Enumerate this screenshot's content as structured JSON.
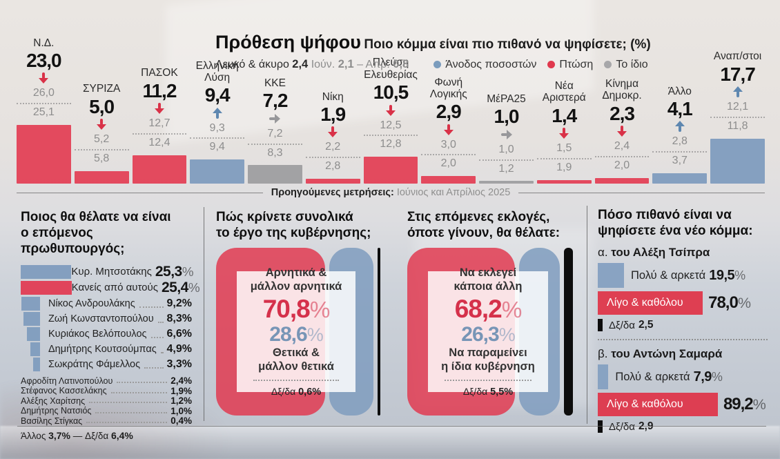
{
  "palette": {
    "red": "#e0394e",
    "blue": "#7f9cbe",
    "gray": "#a7a7a9",
    "black": "#111111"
  },
  "chart_data": [
    {
      "type": "bar",
      "title": "Πρόθεση ψήφου",
      "subtitle": "Ποιο κόμμα είναι πιο πιθανό να ψηφίσετε; (%)",
      "note": {
        "label": "Λευκό & άκυρο",
        "value": "2,4",
        "prev1_label": "Ιούν.",
        "prev1": "2,1",
        "dash": "–",
        "prev2_label": "Απρ.",
        "prev2": "0,8"
      },
      "legend": [
        {
          "label": "Άνοδος ποσοστών",
          "color": "#7b9cbd",
          "trend": "up"
        },
        {
          "label": "Πτώση",
          "color": "#e0394e",
          "trend": "down"
        },
        {
          "label": "Το ίδιο",
          "color": "#a7a7a9",
          "trend": "same"
        }
      ],
      "divider": {
        "bold": "Προηγούμενες μετρήσεις:",
        "rest": "Ιούνιος και Απρίλιος 2025"
      },
      "unit": "%",
      "parties": [
        {
          "name": "Ν.Δ.",
          "value": "23,0",
          "num": 23.0,
          "trend": "down",
          "prev1": "26,0",
          "prev2": "25,1"
        },
        {
          "name": "ΣΥΡΙΖΑ",
          "value": "5,0",
          "num": 5.0,
          "trend": "down",
          "prev1": "5,2",
          "prev2": "5,8"
        },
        {
          "name": "ΠΑΣΟΚ",
          "value": "11,2",
          "num": 11.2,
          "trend": "down",
          "prev1": "12,7",
          "prev2": "12,4"
        },
        {
          "name": "Ελληνική\nΛύση",
          "value": "9,4",
          "num": 9.4,
          "trend": "up",
          "prev1": "9,3",
          "prev2": "9,4"
        },
        {
          "name": "ΚΚΕ",
          "value": "7,2",
          "num": 7.2,
          "trend": "same",
          "prev1": "7,2",
          "prev2": "8,3"
        },
        {
          "name": "Νίκη",
          "value": "1,9",
          "num": 1.9,
          "trend": "down",
          "prev1": "2,2",
          "prev2": "2,8"
        },
        {
          "name": "Πλεύση\nΕλευθερίας",
          "value": "10,5",
          "num": 10.5,
          "trend": "down",
          "prev1": "12,5",
          "prev2": "12,8"
        },
        {
          "name": "Φωνή\nΛογικής",
          "value": "2,9",
          "num": 2.9,
          "trend": "down",
          "prev1": "3,0",
          "prev2": "2,0"
        },
        {
          "name": "ΜέΡΑ25",
          "value": "1,0",
          "num": 1.0,
          "trend": "same",
          "prev1": "1,0",
          "prev2": "1,2"
        },
        {
          "name": "Νέα\nΑριστερά",
          "value": "1,4",
          "num": 1.4,
          "trend": "down",
          "prev1": "1,5",
          "prev2": "1,9"
        },
        {
          "name": "Κίνημα\nΔημοκρ.",
          "value": "2,3",
          "num": 2.3,
          "trend": "down",
          "prev1": "2,4",
          "prev2": "2,0"
        },
        {
          "name": "Άλλο",
          "value": "4,1",
          "num": 4.1,
          "trend": "up",
          "prev1": "2,8",
          "prev2": "3,7"
        },
        {
          "name": "Αναπ/στοι",
          "value": "17,7",
          "num": 17.7,
          "trend": "up",
          "prev1": "12,1",
          "prev2": "11,8"
        }
      ]
    },
    {
      "type": "bar",
      "title": "Ποιος θα θέλατε να είναι\nο επόμενος πρωθυπουργός;",
      "top": [
        {
          "name": "Κυρ. Μητσοτάκης",
          "value": "25,3",
          "suffix": "%",
          "num": 25.3,
          "color": "blue"
        },
        {
          "name": "Κανείς από αυτούς",
          "value": "25,4",
          "suffix": "%",
          "num": 25.4,
          "color": "red"
        }
      ],
      "mid": [
        {
          "name": "Νίκος Ανδρουλάκης",
          "value": "9,2%",
          "num": 9.2
        },
        {
          "name": "Ζωή Κωνσταντοπούλου",
          "value": "8,3%",
          "num": 8.3
        },
        {
          "name": "Κυριάκος Βελόπουλος",
          "value": "6,6%",
          "num": 6.6
        },
        {
          "name": "Δημήτρης Κουτσούμπας",
          "value": "4,9%",
          "num": 4.9
        },
        {
          "name": "Σωκράτης Φάμελλος",
          "value": "3,3%",
          "num": 3.3
        }
      ],
      "small": [
        {
          "name": "Αφροδίτη Λατινοπούλου",
          "value": "2,4%",
          "num": 2.4
        },
        {
          "name": "Στέφανος Κασσελάκης",
          "value": "1,9%",
          "num": 1.9
        },
        {
          "name": "Αλέξης Χαρίτσης",
          "value": "1,2%",
          "num": 1.2
        },
        {
          "name": "Δημήτρης Νατσιός",
          "value": "1,0%",
          "num": 1.0
        },
        {
          "name": "Βασίλης Στίγκας",
          "value": "0,4%",
          "num": 0.4
        }
      ],
      "footer": {
        "other_label": "Άλλος",
        "other_value": "3,7%",
        "dash": "—",
        "dk_label": "Δξ/δα",
        "dk_value": "6,4%"
      }
    },
    {
      "type": "pie",
      "title": "Πώς κρίνετε συνολικά\nτο έργο της κυβέρνησης;",
      "negative": {
        "label": "Αρνητικά &\nμάλλον αρνητικά",
        "value": "70,8",
        "suffix": "%",
        "num": 70.8,
        "color": "#e0394e"
      },
      "positive": {
        "label": "Θετικά &\nμάλλον θετικά",
        "value": "28,6",
        "suffix": "%",
        "num": 28.6,
        "color": "#7f9cbe"
      },
      "dk": {
        "label": "Δξ/δα",
        "value": "0,6%",
        "num": 0.6,
        "color": "#111111"
      }
    },
    {
      "type": "pie",
      "title": "Στις επόμενες εκλογές,\nόποτε γίνουν, θα θέλατε:",
      "negative": {
        "label": "Να εκλεγεί\nκάποια άλλη",
        "value": "68,2",
        "suffix": "%",
        "num": 68.2,
        "color": "#e0394e"
      },
      "positive": {
        "label": "Να παραμείνει\nη ίδια κυβέρνηση",
        "value": "26,3",
        "suffix": "%",
        "num": 26.3,
        "color": "#7f9cbe"
      },
      "dk": {
        "label": "Δξ/δα",
        "value": "5,5%",
        "num": 5.5,
        "color": "#111111"
      }
    },
    {
      "type": "bar",
      "title": "Πόσο πιθανό είναι να\nψηφίσετε ένα νέο κόμμα:",
      "groups": [
        {
          "prefix": "α.",
          "name": "του Αλέξη Τσίπρα",
          "likely": {
            "label": "Πολύ & αρκετά",
            "value": "19,5",
            "suffix": "%",
            "num": 19.5
          },
          "unlikely": {
            "label": "Λίγο & καθόλου",
            "value": "78,0",
            "suffix": "%",
            "num": 78.0
          },
          "dk": {
            "label": "Δξ/δα",
            "value": "2,5",
            "num": 2.5
          }
        },
        {
          "prefix": "β.",
          "name": "του Αντώνη Σαμαρά",
          "likely": {
            "label": "Πολύ & αρκετά",
            "value": "7,9",
            "suffix": "%",
            "num": 7.9
          },
          "unlikely": {
            "label": "Λίγο & καθόλου",
            "value": "89,2",
            "suffix": "%",
            "num": 89.2
          },
          "dk": {
            "label": "Δξ/δα",
            "value": "2,9",
            "num": 2.9
          }
        }
      ]
    }
  ]
}
